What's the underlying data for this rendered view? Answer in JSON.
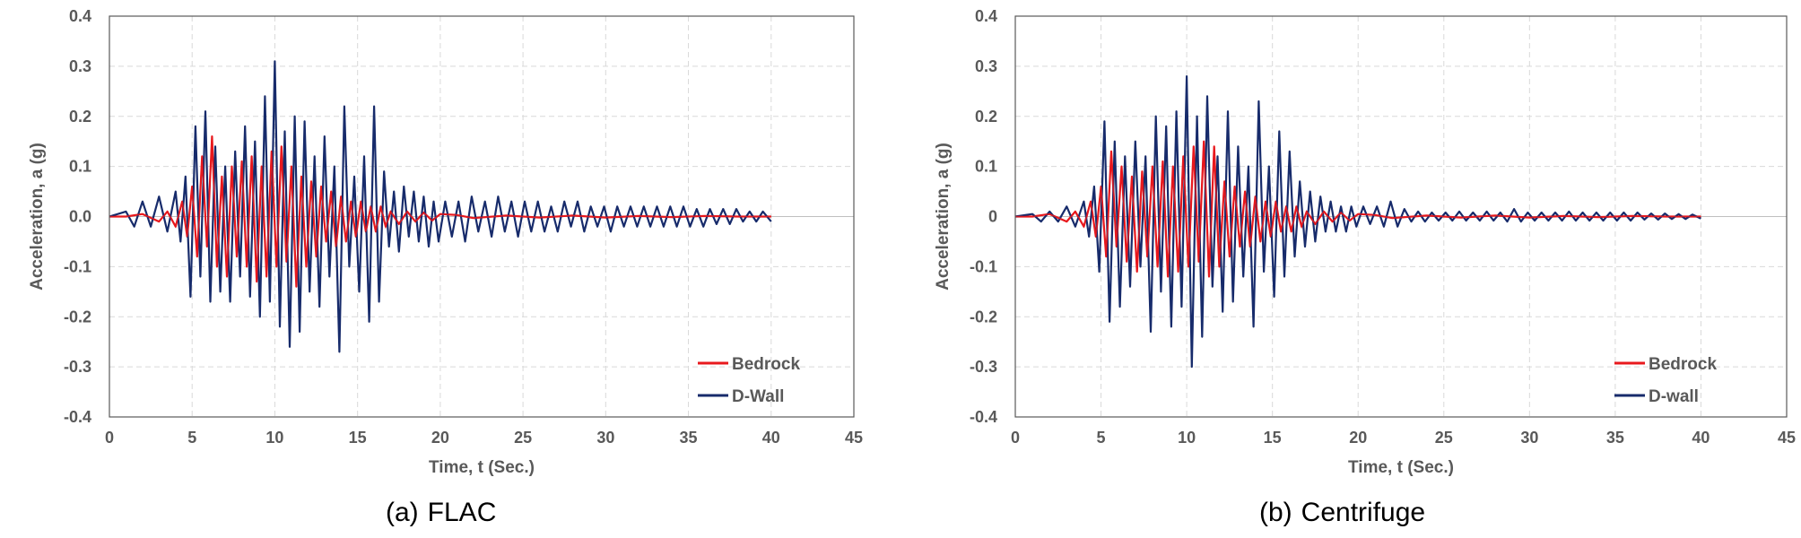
{
  "chart_data": [
    {
      "type": "line",
      "caption_label": "(a)",
      "caption_title": "FLAC",
      "xlabel": "Time, t (Sec.)",
      "ylabel": "Acceleration, a (g)",
      "xlim": [
        0,
        45
      ],
      "ylim": [
        -0.4,
        0.4
      ],
      "xticks": [
        "0",
        "5",
        "10",
        "15",
        "20",
        "25",
        "30",
        "35",
        "40",
        "45"
      ],
      "yticks": [
        "-0.4",
        "-0.3",
        "-0.2",
        "-0.1",
        "0.0",
        "0.1",
        "0.2",
        "0.3",
        "0.4"
      ],
      "grid": true,
      "legend_position": "bottom-right",
      "series": [
        {
          "name": "Bedrock",
          "color": "#e8191d",
          "x": [
            0,
            1,
            2,
            3,
            3.5,
            4,
            4.4,
            4.7,
            5,
            5.3,
            5.6,
            5.9,
            6.2,
            6.5,
            6.8,
            7.1,
            7.4,
            7.7,
            8,
            8.3,
            8.6,
            8.9,
            9.2,
            9.5,
            9.8,
            10.1,
            10.4,
            10.7,
            11,
            11.3,
            11.6,
            11.9,
            12.2,
            12.5,
            12.8,
            13.1,
            13.4,
            13.7,
            14,
            14.3,
            14.6,
            14.9,
            15.2,
            15.5,
            15.8,
            16.1,
            16.4,
            16.7,
            17,
            17.5,
            18,
            18.5,
            19,
            19.5,
            20,
            21,
            22,
            24,
            26,
            28,
            30,
            32,
            34,
            36,
            38,
            40
          ],
          "y": [
            0,
            0,
            0.005,
            -0.01,
            0.01,
            -0.02,
            0.03,
            -0.04,
            0.06,
            -0.08,
            0.12,
            -0.06,
            0.16,
            -0.1,
            0.08,
            -0.12,
            0.1,
            -0.08,
            0.11,
            -0.1,
            0.12,
            -0.13,
            0.1,
            -0.12,
            0.13,
            -0.1,
            0.14,
            -0.09,
            0.1,
            -0.14,
            0.08,
            -0.1,
            0.07,
            -0.08,
            0.06,
            -0.05,
            0.05,
            -0.06,
            0.04,
            -0.05,
            0.03,
            -0.04,
            0.03,
            -0.03,
            0.02,
            -0.03,
            0.02,
            -0.02,
            0.01,
            -0.015,
            0.01,
            -0.01,
            0.008,
            -0.008,
            0.005,
            0.003,
            -0.003,
            0.002,
            -0.002,
            0.002,
            -0.002,
            0.001,
            -0.001,
            0.001,
            0,
            0
          ]
        },
        {
          "name": "D-Wall",
          "color": "#172b6b",
          "x": [
            0,
            1,
            1.5,
            2,
            2.5,
            3,
            3.5,
            4,
            4.3,
            4.6,
            4.9,
            5.2,
            5.5,
            5.8,
            6.1,
            6.4,
            6.7,
            7,
            7.3,
            7.6,
            7.9,
            8.2,
            8.5,
            8.8,
            9.1,
            9.4,
            9.7,
            10,
            10.3,
            10.6,
            10.9,
            11.2,
            11.5,
            11.8,
            12.1,
            12.4,
            12.7,
            13,
            13.3,
            13.6,
            13.9,
            14.2,
            14.5,
            14.8,
            15.1,
            15.4,
            15.7,
            16,
            16.3,
            16.6,
            16.9,
            17.2,
            17.5,
            17.8,
            18.1,
            18.4,
            18.7,
            19,
            19.3,
            19.6,
            19.9,
            20.3,
            20.7,
            21.1,
            21.5,
            21.9,
            22.3,
            22.7,
            23.1,
            23.5,
            23.9,
            24.3,
            24.7,
            25.1,
            25.5,
            25.9,
            26.3,
            26.7,
            27.1,
            27.5,
            27.9,
            28.3,
            28.7,
            29.1,
            29.5,
            29.9,
            30.3,
            30.7,
            31.1,
            31.5,
            31.9,
            32.3,
            32.7,
            33.1,
            33.5,
            33.9,
            34.3,
            34.7,
            35.1,
            35.5,
            35.9,
            36.3,
            36.7,
            37.1,
            37.5,
            37.9,
            38.3,
            38.7,
            39.1,
            39.5,
            40
          ],
          "y": [
            0,
            0.01,
            -0.02,
            0.03,
            -0.02,
            0.04,
            -0.03,
            0.05,
            -0.05,
            0.08,
            -0.16,
            0.18,
            -0.12,
            0.21,
            -0.17,
            0.14,
            -0.15,
            0.1,
            -0.17,
            0.13,
            -0.12,
            0.18,
            -0.16,
            0.15,
            -0.2,
            0.24,
            -0.17,
            0.31,
            -0.22,
            0.17,
            -0.26,
            0.2,
            -0.23,
            0.19,
            -0.15,
            0.12,
            -0.18,
            0.16,
            -0.12,
            0.1,
            -0.27,
            0.22,
            -0.1,
            0.08,
            -0.15,
            0.12,
            -0.21,
            0.22,
            -0.17,
            0.09,
            -0.06,
            0.05,
            -0.07,
            0.06,
            -0.04,
            0.05,
            -0.05,
            0.04,
            -0.06,
            0.03,
            -0.05,
            0.03,
            -0.04,
            0.03,
            -0.05,
            0.04,
            -0.03,
            0.03,
            -0.04,
            0.04,
            -0.03,
            0.03,
            -0.04,
            0.03,
            -0.03,
            0.03,
            -0.03,
            0.02,
            -0.03,
            0.03,
            -0.02,
            0.03,
            -0.03,
            0.02,
            -0.02,
            0.02,
            -0.03,
            0.02,
            -0.02,
            0.02,
            -0.02,
            0.02,
            -0.02,
            0.02,
            -0.02,
            0.02,
            -0.02,
            0.02,
            -0.02,
            0.015,
            -0.02,
            0.015,
            -0.015,
            0.015,
            -0.015,
            0.015,
            -0.01,
            0.01,
            -0.01,
            0.01,
            -0.01
          ]
        }
      ]
    },
    {
      "type": "line",
      "caption_label": "(b)",
      "caption_title": "Centrifuge",
      "xlabel": "Time, t (Sec.)",
      "ylabel": "Acceleration, a (g)",
      "xlim": [
        0,
        45
      ],
      "ylim": [
        -0.4,
        0.4
      ],
      "xticks": [
        "0",
        "5",
        "10",
        "15",
        "20",
        "25",
        "30",
        "35",
        "40",
        "45"
      ],
      "yticks": [
        "-0.4",
        "-0.3",
        "-0.2",
        "-0.1",
        "0",
        "0.1",
        "0.2",
        "0.3",
        "0.4"
      ],
      "grid": true,
      "legend_position": "bottom-right",
      "series": [
        {
          "name": "Bedrock",
          "color": "#e8191d",
          "x": [
            0,
            1,
            2,
            3,
            3.5,
            4,
            4.4,
            4.7,
            5,
            5.3,
            5.6,
            5.9,
            6.2,
            6.5,
            6.8,
            7.1,
            7.4,
            7.7,
            8,
            8.3,
            8.6,
            8.9,
            9.2,
            9.5,
            9.8,
            10.1,
            10.4,
            10.7,
            11,
            11.3,
            11.6,
            11.9,
            12.2,
            12.5,
            12.8,
            13.1,
            13.4,
            13.7,
            14,
            14.3,
            14.6,
            14.9,
            15.2,
            15.5,
            15.8,
            16.1,
            16.4,
            16.7,
            17,
            17.5,
            18,
            18.5,
            19,
            19.5,
            20,
            21,
            22,
            24,
            26,
            28,
            30,
            32,
            34,
            36,
            38,
            40
          ],
          "y": [
            0,
            0,
            0.005,
            -0.01,
            0.01,
            -0.02,
            0.03,
            -0.04,
            0.06,
            -0.08,
            0.13,
            -0.06,
            0.1,
            -0.09,
            0.08,
            -0.11,
            0.09,
            -0.08,
            0.1,
            -0.1,
            0.11,
            -0.12,
            0.1,
            -0.11,
            0.12,
            -0.1,
            0.14,
            -0.09,
            0.15,
            -0.12,
            0.14,
            -0.1,
            0.07,
            -0.08,
            0.06,
            -0.06,
            0.05,
            -0.06,
            0.04,
            -0.05,
            0.03,
            -0.04,
            0.03,
            -0.03,
            0.02,
            -0.03,
            0.02,
            -0.02,
            0.01,
            -0.015,
            0.01,
            -0.01,
            0.008,
            -0.008,
            0.005,
            0.003,
            -0.003,
            0.002,
            -0.002,
            0.002,
            -0.002,
            0.001,
            -0.001,
            0.001,
            0,
            0
          ]
        },
        {
          "name": "D-wall",
          "color": "#172b6b",
          "x": [
            0,
            1,
            1.5,
            2,
            2.5,
            3,
            3.5,
            4,
            4.3,
            4.6,
            4.9,
            5.2,
            5.5,
            5.8,
            6.1,
            6.4,
            6.7,
            7,
            7.3,
            7.6,
            7.9,
            8.2,
            8.5,
            8.8,
            9.1,
            9.4,
            9.7,
            10,
            10.3,
            10.6,
            10.9,
            11.2,
            11.5,
            11.8,
            12.1,
            12.4,
            12.7,
            13,
            13.3,
            13.6,
            13.9,
            14.2,
            14.5,
            14.8,
            15.1,
            15.4,
            15.7,
            16,
            16.3,
            16.6,
            16.9,
            17.2,
            17.5,
            17.8,
            18.1,
            18.4,
            18.7,
            19,
            19.3,
            19.6,
            19.9,
            20.3,
            20.7,
            21.1,
            21.5,
            21.9,
            22.3,
            22.7,
            23.1,
            23.5,
            23.9,
            24.3,
            24.7,
            25.1,
            25.5,
            25.9,
            26.3,
            26.7,
            27.1,
            27.5,
            27.9,
            28.3,
            28.7,
            29.1,
            29.5,
            29.9,
            30.3,
            30.7,
            31.1,
            31.5,
            31.9,
            32.3,
            32.7,
            33.1,
            33.5,
            33.9,
            34.3,
            34.7,
            35.1,
            35.5,
            35.9,
            36.3,
            36.7,
            37.1,
            37.5,
            37.9,
            38.3,
            38.7,
            39.1,
            39.5,
            40
          ],
          "y": [
            0,
            0.005,
            -0.01,
            0.01,
            -0.01,
            0.02,
            -0.02,
            0.03,
            -0.04,
            0.06,
            -0.11,
            0.19,
            -0.21,
            0.15,
            -0.18,
            0.12,
            -0.14,
            0.15,
            -0.1,
            0.12,
            -0.23,
            0.2,
            -0.15,
            0.18,
            -0.22,
            0.21,
            -0.18,
            0.28,
            -0.3,
            0.2,
            -0.24,
            0.24,
            -0.14,
            0.12,
            -0.19,
            0.21,
            -0.17,
            0.14,
            -0.12,
            0.1,
            -0.22,
            0.23,
            -0.11,
            0.1,
            -0.16,
            0.17,
            -0.12,
            0.13,
            -0.08,
            0.07,
            -0.06,
            0.05,
            -0.05,
            0.04,
            -0.03,
            0.03,
            -0.03,
            0.02,
            -0.03,
            0.02,
            -0.02,
            0.02,
            -0.015,
            0.02,
            -0.02,
            0.03,
            -0.02,
            0.015,
            -0.01,
            0.01,
            -0.01,
            0.008,
            -0.008,
            0.008,
            -0.008,
            0.01,
            -0.008,
            0.008,
            -0.008,
            0.01,
            -0.008,
            0.008,
            -0.01,
            0.015,
            -0.01,
            0.008,
            -0.008,
            0.008,
            -0.008,
            0.008,
            -0.008,
            0.01,
            -0.008,
            0.008,
            -0.008,
            0.008,
            -0.008,
            0.008,
            -0.008,
            0.008,
            -0.008,
            0.008,
            -0.006,
            0.006,
            -0.006,
            0.006,
            -0.005,
            0.005,
            -0.005,
            0.004,
            -0.004
          ]
        }
      ]
    }
  ]
}
